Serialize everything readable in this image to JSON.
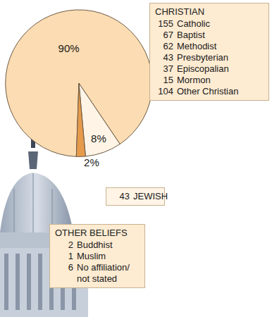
{
  "chart_data": {
    "type": "pie",
    "values": [
      90,
      8,
      2
    ],
    "value_labels": [
      "90%",
      "8%",
      "2%"
    ],
    "colors": [
      "#fcdcb2",
      "#fff4e6",
      "#e59a4c"
    ],
    "callouts": [
      {
        "title": "CHRISTIAN",
        "items": [
          {
            "count": 155,
            "label": "Catholic"
          },
          {
            "count": 67,
            "label": "Baptist"
          },
          {
            "count": 62,
            "label": "Methodist"
          },
          {
            "count": 43,
            "label": "Presbyterian"
          },
          {
            "count": 37,
            "label": "Episcopalian"
          },
          {
            "count": 15,
            "label": "Mormon"
          },
          {
            "count": 104,
            "label": "Other Christian"
          }
        ]
      },
      {
        "items": [
          {
            "count": 43,
            "label": "JEWISH"
          }
        ]
      },
      {
        "title": "OTHER BELIEFS",
        "items": [
          {
            "count": 2,
            "label": "Buddhist"
          },
          {
            "count": 1,
            "label": "Muslim"
          },
          {
            "count": 6,
            "label": "No affiliation/ not stated"
          }
        ]
      }
    ]
  }
}
